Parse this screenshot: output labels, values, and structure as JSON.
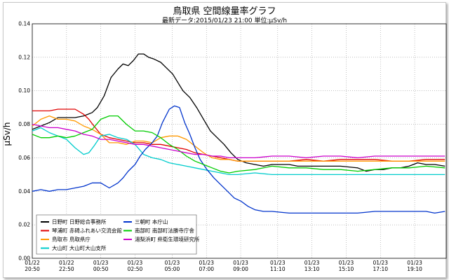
{
  "chart_data": {
    "type": "line",
    "title": "鳥取県 空間線量率グラフ",
    "subtitle": "最新データ:2015/01/23 21:00 単位:μSv/h",
    "ylabel": "μSv/h",
    "ylim": [
      0,
      0.14
    ],
    "yticks": [
      "0.00",
      "0.02",
      "0.04",
      "0.06",
      "0.08",
      "0.10",
      "0.12",
      "0.14"
    ],
    "x_ticks": [
      {
        "h": 0.0,
        "date": "01/22",
        "time": "20:50"
      },
      {
        "h": 2.0,
        "date": "01/22",
        "time": "22:50"
      },
      {
        "h": 4.0,
        "date": "01/23",
        "time": "00:50"
      },
      {
        "h": 6.0,
        "date": "01/23",
        "time": "02:50"
      },
      {
        "h": 8.17,
        "date": "01/23",
        "time": "05:00"
      },
      {
        "h": 10.17,
        "date": "01/23",
        "time": "07:00"
      },
      {
        "h": 12.17,
        "date": "01/23",
        "time": "09:00"
      },
      {
        "h": 14.33,
        "date": "01/23",
        "time": "11:10"
      },
      {
        "h": 16.33,
        "date": "01/23",
        "time": "13:10"
      },
      {
        "h": 18.33,
        "date": "01/23",
        "time": "15:10"
      },
      {
        "h": 20.33,
        "date": "01/23",
        "time": "17:10"
      },
      {
        "h": 22.33,
        "date": "01/23",
        "time": "19:10"
      }
    ],
    "x_range_hours": [
      0,
      24.17
    ],
    "grid": "dotted",
    "legend_position": "bottom-left",
    "series": [
      {
        "name": "日野町 日野総合事務所",
        "color": "#000000",
        "points": [
          [
            0,
            0.077
          ],
          [
            0.5,
            0.079
          ],
          [
            1,
            0.081
          ],
          [
            1.5,
            0.084
          ],
          [
            2,
            0.084
          ],
          [
            2.5,
            0.084
          ],
          [
            3,
            0.085
          ],
          [
            3.5,
            0.087
          ],
          [
            3.8,
            0.09
          ],
          [
            4.2,
            0.097
          ],
          [
            4.6,
            0.108
          ],
          [
            5,
            0.113
          ],
          [
            5.3,
            0.116
          ],
          [
            5.6,
            0.115
          ],
          [
            5.9,
            0.118
          ],
          [
            6.2,
            0.122
          ],
          [
            6.5,
            0.122
          ],
          [
            6.8,
            0.12
          ],
          [
            7.1,
            0.119
          ],
          [
            7.5,
            0.117
          ],
          [
            7.8,
            0.114
          ],
          [
            8.2,
            0.11
          ],
          [
            8.5,
            0.105
          ],
          [
            8.8,
            0.1
          ],
          [
            9.2,
            0.096
          ],
          [
            9.6,
            0.09
          ],
          [
            10,
            0.083
          ],
          [
            10.4,
            0.076
          ],
          [
            10.8,
            0.072
          ],
          [
            11.2,
            0.068
          ],
          [
            11.6,
            0.063
          ],
          [
            12,
            0.059
          ],
          [
            12.5,
            0.057
          ],
          [
            13,
            0.056
          ],
          [
            13.5,
            0.055
          ],
          [
            14,
            0.056
          ],
          [
            14.5,
            0.056
          ],
          [
            15,
            0.056
          ],
          [
            15.5,
            0.055
          ],
          [
            16,
            0.055
          ],
          [
            17,
            0.055
          ],
          [
            18,
            0.055
          ],
          [
            19,
            0.054
          ],
          [
            19.5,
            0.052
          ],
          [
            20,
            0.053
          ],
          [
            20.5,
            0.053
          ],
          [
            21,
            0.054
          ],
          [
            21.5,
            0.054
          ],
          [
            22,
            0.055
          ],
          [
            22.5,
            0.057
          ],
          [
            23,
            0.056
          ],
          [
            23.5,
            0.056
          ],
          [
            24.1,
            0.055
          ]
        ]
      },
      {
        "name": "琴浦町 赤碕ふれあい交流会館",
        "color": "#e00000",
        "points": [
          [
            0,
            0.088
          ],
          [
            0.5,
            0.088
          ],
          [
            1,
            0.088
          ],
          [
            1.5,
            0.089
          ],
          [
            2,
            0.089
          ],
          [
            2.5,
            0.089
          ],
          [
            3,
            0.086
          ],
          [
            3.3,
            0.083
          ],
          [
            3.6,
            0.079
          ],
          [
            4,
            0.074
          ],
          [
            4.5,
            0.072
          ],
          [
            5,
            0.071
          ],
          [
            5.5,
            0.07
          ],
          [
            6,
            0.069
          ],
          [
            6.5,
            0.069
          ],
          [
            7,
            0.068
          ],
          [
            7.5,
            0.068
          ],
          [
            8,
            0.067
          ],
          [
            8.5,
            0.066
          ],
          [
            9,
            0.065
          ],
          [
            9.5,
            0.063
          ],
          [
            10,
            0.062
          ],
          [
            10.5,
            0.061
          ],
          [
            11,
            0.06
          ],
          [
            11.5,
            0.059
          ],
          [
            12,
            0.058
          ],
          [
            13,
            0.058
          ],
          [
            14,
            0.058
          ],
          [
            15,
            0.058
          ],
          [
            16,
            0.059
          ],
          [
            17,
            0.058
          ],
          [
            18,
            0.059
          ],
          [
            19,
            0.059
          ],
          [
            20,
            0.059
          ],
          [
            21,
            0.058
          ],
          [
            22,
            0.058
          ],
          [
            23,
            0.059
          ],
          [
            24.1,
            0.059
          ]
        ]
      },
      {
        "name": "鳥取市 鳥取県庁",
        "color": "#ff9900",
        "points": [
          [
            0,
            0.079
          ],
          [
            0.5,
            0.083
          ],
          [
            1,
            0.085
          ],
          [
            1.5,
            0.083
          ],
          [
            2,
            0.083
          ],
          [
            2.5,
            0.082
          ],
          [
            3,
            0.079
          ],
          [
            3.5,
            0.077
          ],
          [
            4,
            0.074
          ],
          [
            4.5,
            0.069
          ],
          [
            5,
            0.069
          ],
          [
            5.5,
            0.068
          ],
          [
            6,
            0.07
          ],
          [
            6.5,
            0.07
          ],
          [
            7,
            0.069
          ],
          [
            7.5,
            0.072
          ],
          [
            8,
            0.073
          ],
          [
            8.5,
            0.073
          ],
          [
            9,
            0.071
          ],
          [
            9.5,
            0.067
          ],
          [
            10,
            0.063
          ],
          [
            10.5,
            0.06
          ],
          [
            11,
            0.059
          ],
          [
            11.5,
            0.059
          ],
          [
            12,
            0.058
          ],
          [
            13,
            0.058
          ],
          [
            14,
            0.058
          ],
          [
            15,
            0.058
          ],
          [
            16,
            0.058
          ],
          [
            17,
            0.058
          ],
          [
            18,
            0.058
          ],
          [
            19,
            0.058
          ],
          [
            20,
            0.058
          ],
          [
            21,
            0.058
          ],
          [
            22,
            0.058
          ],
          [
            23,
            0.058
          ],
          [
            24.1,
            0.058
          ]
        ]
      },
      {
        "name": "大山町 大山町大山支所",
        "color": "#00cccc",
        "points": [
          [
            0,
            0.076
          ],
          [
            0.5,
            0.078
          ],
          [
            1,
            0.075
          ],
          [
            1.5,
            0.073
          ],
          [
            2,
            0.071
          ],
          [
            2.5,
            0.066
          ],
          [
            3,
            0.062
          ],
          [
            3.3,
            0.063
          ],
          [
            3.6,
            0.067
          ],
          [
            4,
            0.073
          ],
          [
            4.5,
            0.074
          ],
          [
            5,
            0.072
          ],
          [
            5.5,
            0.071
          ],
          [
            6,
            0.068
          ],
          [
            6.5,
            0.062
          ],
          [
            7,
            0.06
          ],
          [
            7.5,
            0.059
          ],
          [
            8,
            0.057
          ],
          [
            8.5,
            0.056
          ],
          [
            9,
            0.055
          ],
          [
            9.5,
            0.054
          ],
          [
            10,
            0.053
          ],
          [
            10.5,
            0.052
          ],
          [
            11,
            0.051
          ],
          [
            11.5,
            0.05
          ],
          [
            12,
            0.05
          ],
          [
            13,
            0.051
          ],
          [
            14,
            0.05
          ],
          [
            15,
            0.05
          ],
          [
            16,
            0.05
          ],
          [
            17,
            0.05
          ],
          [
            18,
            0.05
          ],
          [
            19,
            0.05
          ],
          [
            20,
            0.05
          ],
          [
            21,
            0.05
          ],
          [
            22,
            0.05
          ],
          [
            23,
            0.05
          ],
          [
            24.1,
            0.05
          ]
        ]
      },
      {
        "name": "三朝町 本庁山",
        "color": "#0033cc",
        "points": [
          [
            0,
            0.04
          ],
          [
            0.5,
            0.041
          ],
          [
            1,
            0.04
          ],
          [
            1.5,
            0.041
          ],
          [
            2,
            0.041
          ],
          [
            2.5,
            0.042
          ],
          [
            3,
            0.043
          ],
          [
            3.5,
            0.045
          ],
          [
            4,
            0.045
          ],
          [
            4.5,
            0.042
          ],
          [
            5,
            0.045
          ],
          [
            5.3,
            0.048
          ],
          [
            5.6,
            0.052
          ],
          [
            6,
            0.056
          ],
          [
            6.3,
            0.061
          ],
          [
            6.6,
            0.065
          ],
          [
            7,
            0.069
          ],
          [
            7.3,
            0.073
          ],
          [
            7.6,
            0.081
          ],
          [
            8,
            0.089
          ],
          [
            8.3,
            0.091
          ],
          [
            8.6,
            0.09
          ],
          [
            8.9,
            0.081
          ],
          [
            9.2,
            0.074
          ],
          [
            9.5,
            0.066
          ],
          [
            9.8,
            0.059
          ],
          [
            10.2,
            0.053
          ],
          [
            10.6,
            0.048
          ],
          [
            11,
            0.044
          ],
          [
            11.4,
            0.04
          ],
          [
            11.8,
            0.036
          ],
          [
            12.2,
            0.034
          ],
          [
            12.6,
            0.031
          ],
          [
            13,
            0.029
          ],
          [
            13.5,
            0.028
          ],
          [
            14,
            0.028
          ],
          [
            15,
            0.027
          ],
          [
            16,
            0.027
          ],
          [
            17,
            0.027
          ],
          [
            18,
            0.027
          ],
          [
            19,
            0.027
          ],
          [
            20,
            0.028
          ],
          [
            21,
            0.028
          ],
          [
            22,
            0.028
          ],
          [
            23,
            0.028
          ],
          [
            23.5,
            0.027
          ],
          [
            24.1,
            0.028
          ]
        ]
      },
      {
        "name": "南部町 南部町法勝寺庁舎",
        "color": "#00cc00",
        "points": [
          [
            0,
            0.074
          ],
          [
            0.5,
            0.072
          ],
          [
            1,
            0.072
          ],
          [
            1.5,
            0.073
          ],
          [
            2,
            0.072
          ],
          [
            2.5,
            0.073
          ],
          [
            3,
            0.075
          ],
          [
            3.5,
            0.077
          ],
          [
            4,
            0.083
          ],
          [
            4.5,
            0.085
          ],
          [
            5,
            0.085
          ],
          [
            5.5,
            0.08
          ],
          [
            6,
            0.076
          ],
          [
            6.5,
            0.076
          ],
          [
            7,
            0.075
          ],
          [
            7.5,
            0.072
          ],
          [
            8,
            0.068
          ],
          [
            8.5,
            0.065
          ],
          [
            9,
            0.061
          ],
          [
            9.5,
            0.058
          ],
          [
            10,
            0.056
          ],
          [
            10.5,
            0.054
          ],
          [
            11,
            0.052
          ],
          [
            11.5,
            0.051
          ],
          [
            12,
            0.052
          ],
          [
            13,
            0.053
          ],
          [
            14,
            0.055
          ],
          [
            15,
            0.054
          ],
          [
            16,
            0.054
          ],
          [
            17,
            0.053
          ],
          [
            18,
            0.053
          ],
          [
            19,
            0.052
          ],
          [
            20,
            0.053
          ],
          [
            21,
            0.054
          ],
          [
            22,
            0.054
          ],
          [
            23,
            0.055
          ],
          [
            24.1,
            0.054
          ]
        ]
      },
      {
        "name": "湯梨浜町 県衛生環境研究所",
        "color": "#cc00cc",
        "points": [
          [
            0,
            0.08
          ],
          [
            0.5,
            0.079
          ],
          [
            1,
            0.078
          ],
          [
            1.5,
            0.078
          ],
          [
            2,
            0.077
          ],
          [
            2.5,
            0.076
          ],
          [
            3,
            0.074
          ],
          [
            3.5,
            0.073
          ],
          [
            4,
            0.071
          ],
          [
            4.5,
            0.071
          ],
          [
            5,
            0.07
          ],
          [
            5.5,
            0.069
          ],
          [
            6,
            0.068
          ],
          [
            6.5,
            0.068
          ],
          [
            7,
            0.067
          ],
          [
            7.5,
            0.066
          ],
          [
            8,
            0.065
          ],
          [
            8.5,
            0.064
          ],
          [
            9,
            0.063
          ],
          [
            9.5,
            0.062
          ],
          [
            10,
            0.062
          ],
          [
            10.5,
            0.061
          ],
          [
            11,
            0.061
          ],
          [
            11.5,
            0.06
          ],
          [
            12,
            0.06
          ],
          [
            13,
            0.06
          ],
          [
            14,
            0.061
          ],
          [
            15,
            0.061
          ],
          [
            16,
            0.06
          ],
          [
            17,
            0.061
          ],
          [
            18,
            0.061
          ],
          [
            19,
            0.06
          ],
          [
            20,
            0.061
          ],
          [
            21,
            0.061
          ],
          [
            22,
            0.061
          ],
          [
            23,
            0.061
          ],
          [
            24.1,
            0.061
          ]
        ]
      }
    ]
  }
}
